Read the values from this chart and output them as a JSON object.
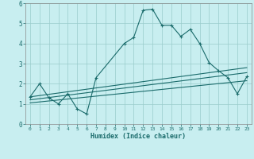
{
  "xlabel": "Humidex (Indice chaleur)",
  "bg_color": "#c8eef0",
  "grid_color": "#99cccc",
  "line_color": "#1a6b6b",
  "xlim": [
    -0.5,
    23.5
  ],
  "ylim": [
    0,
    6
  ],
  "xtick_vals": [
    0,
    1,
    2,
    3,
    4,
    5,
    6,
    7,
    8,
    9,
    10,
    11,
    12,
    13,
    14,
    15,
    16,
    17,
    18,
    19,
    20,
    21,
    22,
    23
  ],
  "ytick_vals": [
    0,
    1,
    2,
    3,
    4,
    5,
    6
  ],
  "series1_x": [
    0,
    1,
    2,
    3,
    4,
    5,
    6,
    7,
    10,
    11,
    12,
    13,
    14,
    15,
    16,
    17,
    18,
    19,
    20,
    21,
    22,
    23
  ],
  "series1_y": [
    1.35,
    2.0,
    1.3,
    1.0,
    1.5,
    0.75,
    0.5,
    2.3,
    4.0,
    4.3,
    5.65,
    5.7,
    4.9,
    4.9,
    4.35,
    4.7,
    4.0,
    3.05,
    2.65,
    2.3,
    1.5,
    2.35
  ],
  "series2_x": [
    0,
    23
  ],
  "series2_y": [
    1.35,
    2.8
  ],
  "series3_x": [
    0,
    23
  ],
  "series3_y": [
    1.2,
    2.55
  ],
  "series4_x": [
    0,
    23
  ],
  "series4_y": [
    1.05,
    2.15
  ]
}
